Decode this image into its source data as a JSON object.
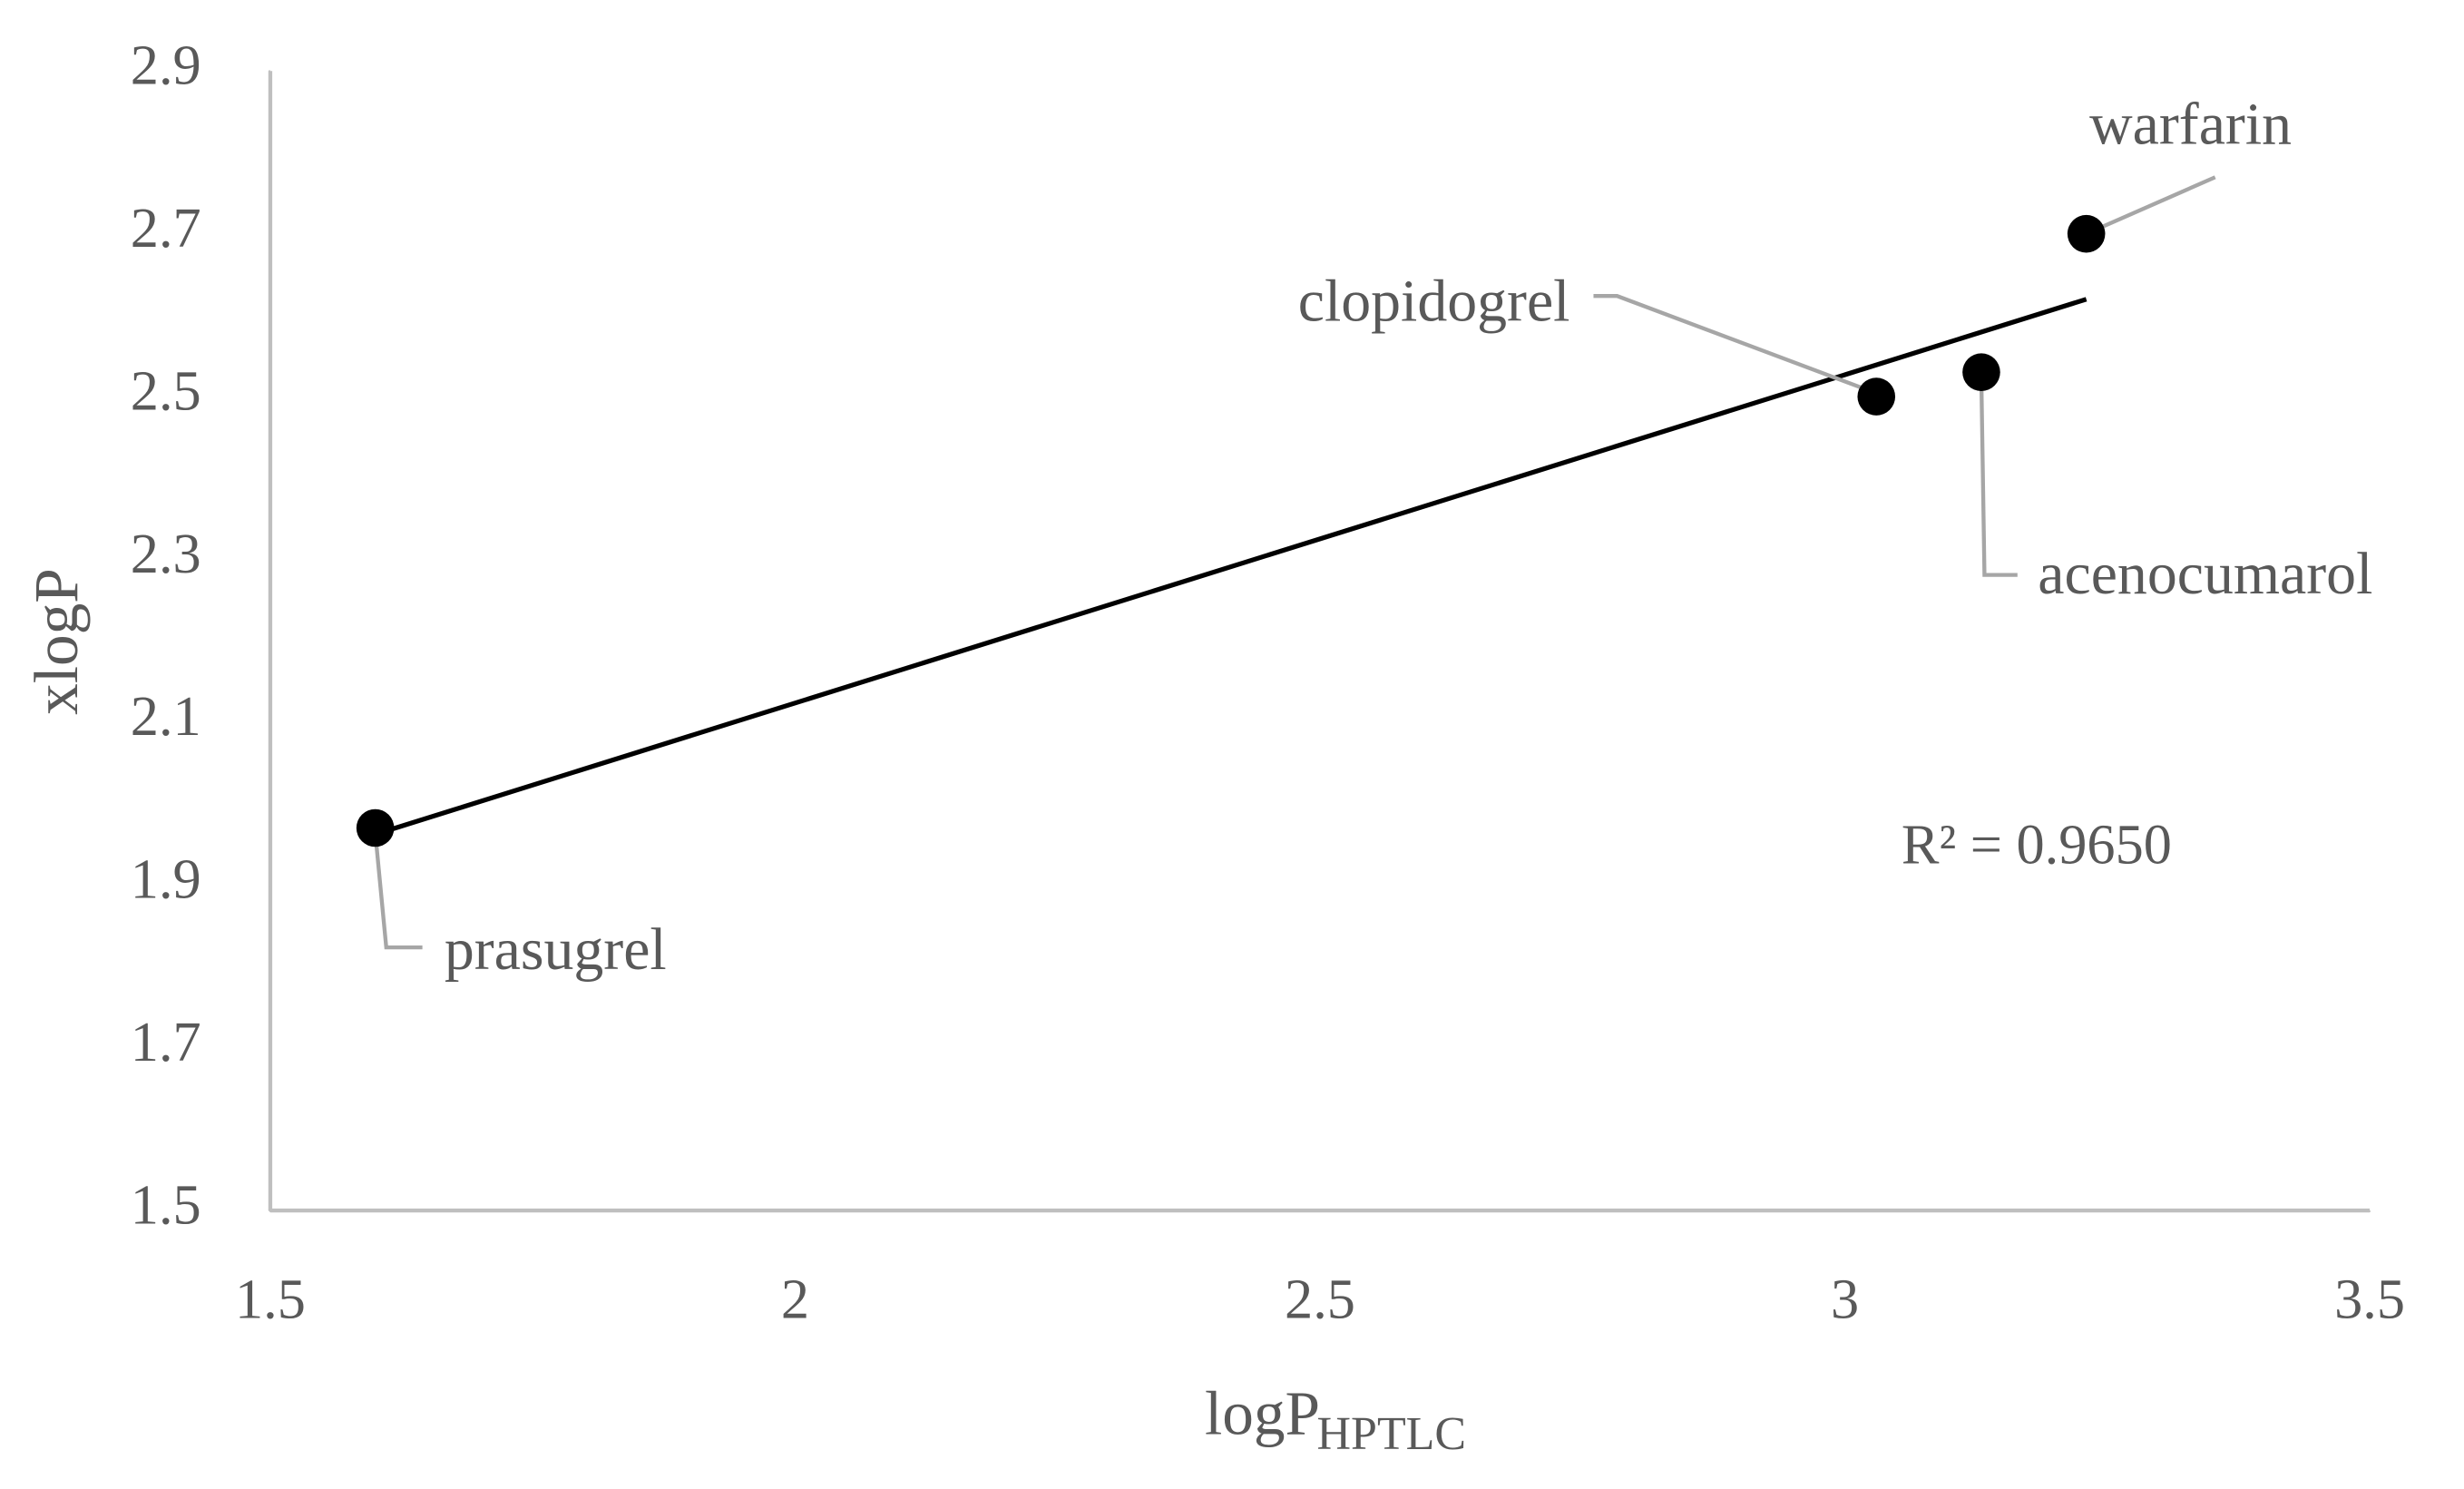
{
  "chart_data": {
    "type": "scatter",
    "xlabel": "logP",
    "xlabel_sub": "HPTLC",
    "ylabel": "xlogP",
    "x": [
      1.6,
      3.03,
      3.13,
      3.23
    ],
    "values": [
      1.97,
      2.5,
      2.53,
      2.7
    ],
    "point_labels": [
      "prasugrel",
      "clopidogrel",
      "acenocumarol",
      "warfarin"
    ],
    "color": "#000000",
    "trendline": true,
    "annotation": "R² = 0.9650",
    "xlim": [
      1.5,
      3.5
    ],
    "xticks": [
      1.5,
      2,
      2.5,
      3,
      3.5
    ],
    "ylim": [
      1.5,
      2.9
    ],
    "yticks": [
      1.5,
      1.7,
      1.9,
      2.1,
      2.3,
      2.5,
      2.7,
      2.9
    ]
  }
}
